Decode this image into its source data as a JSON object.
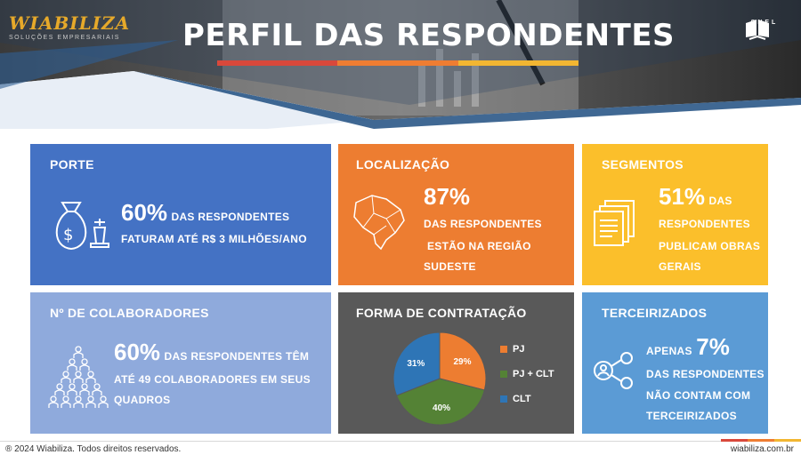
{
  "header": {
    "title": "PERFIL DAS RESPONDENTES",
    "logo_left": {
      "brand": "WIABILIZA",
      "tagline": "SOLUÇÕES EMPRESARIAIS"
    },
    "logo_right": {
      "text": "SNEL"
    },
    "accent_colors": [
      "#d9483b",
      "#ef7d32",
      "#f2b632"
    ]
  },
  "cards": {
    "porte": {
      "title": "PORTE",
      "big": "60%",
      "line1": "DAS RESPONDENTES",
      "line2": "FATURAM ATÉ R$ 3 MILHÕES/ANO",
      "color": "#4472c4",
      "icon": "money-bag-chess-icon"
    },
    "localizacao": {
      "title": "LOCALIZAÇÃO",
      "big": "87%",
      "line1": "DAS RESPONDENTES",
      "line2": "ESTÃO NA REGIÃO",
      "line3": "SUDESTE",
      "color": "#ed7d31",
      "icon": "brazil-map-icon"
    },
    "segmentos": {
      "title": "SEGMENTOS",
      "big": "51%",
      "big_suffix": "DAS",
      "line1": "RESPONDENTES",
      "line2": "PUBLICAM OBRAS",
      "line3": "GERAIS",
      "color": "#fbbf2b",
      "icon": "documents-icon"
    },
    "colaboradores": {
      "title": "Nº DE COLABORADORES",
      "big": "60%",
      "big_suffix": "DAS RESPONDENTES TÊM",
      "line1": "ATÉ 49 COLABORADORES EM SEUS",
      "line2": "QUADROS",
      "color": "#8faadc",
      "icon": "people-pyramid-icon"
    },
    "contratacao": {
      "title": "FORMA DE CONTRATAÇÃO",
      "color": "#595959"
    },
    "terceirizados": {
      "title": "TERCEIRIZADOS",
      "prefix": "APENAS",
      "big": "7%",
      "line1": "DAS RESPONDENTES",
      "line2": "NÃO CONTAM COM",
      "line3": "TERCEIRIZADOS",
      "color": "#5b9bd5",
      "icon": "network-person-icon"
    }
  },
  "chart_data": {
    "type": "pie",
    "title": "FORMA DE CONTRATAÇÃO",
    "categories": [
      "PJ",
      "PJ + CLT",
      "CLT"
    ],
    "values": [
      29,
      40,
      31
    ],
    "labels": [
      "29%",
      "40%",
      "31%"
    ],
    "colors": [
      "#ed7d31",
      "#548235",
      "#2e75b6"
    ],
    "legend": "right"
  },
  "footer": {
    "copyright": "® 2024 Wiabiliza. Todos direitos reservados.",
    "site": "wiabiliza.com.br"
  }
}
